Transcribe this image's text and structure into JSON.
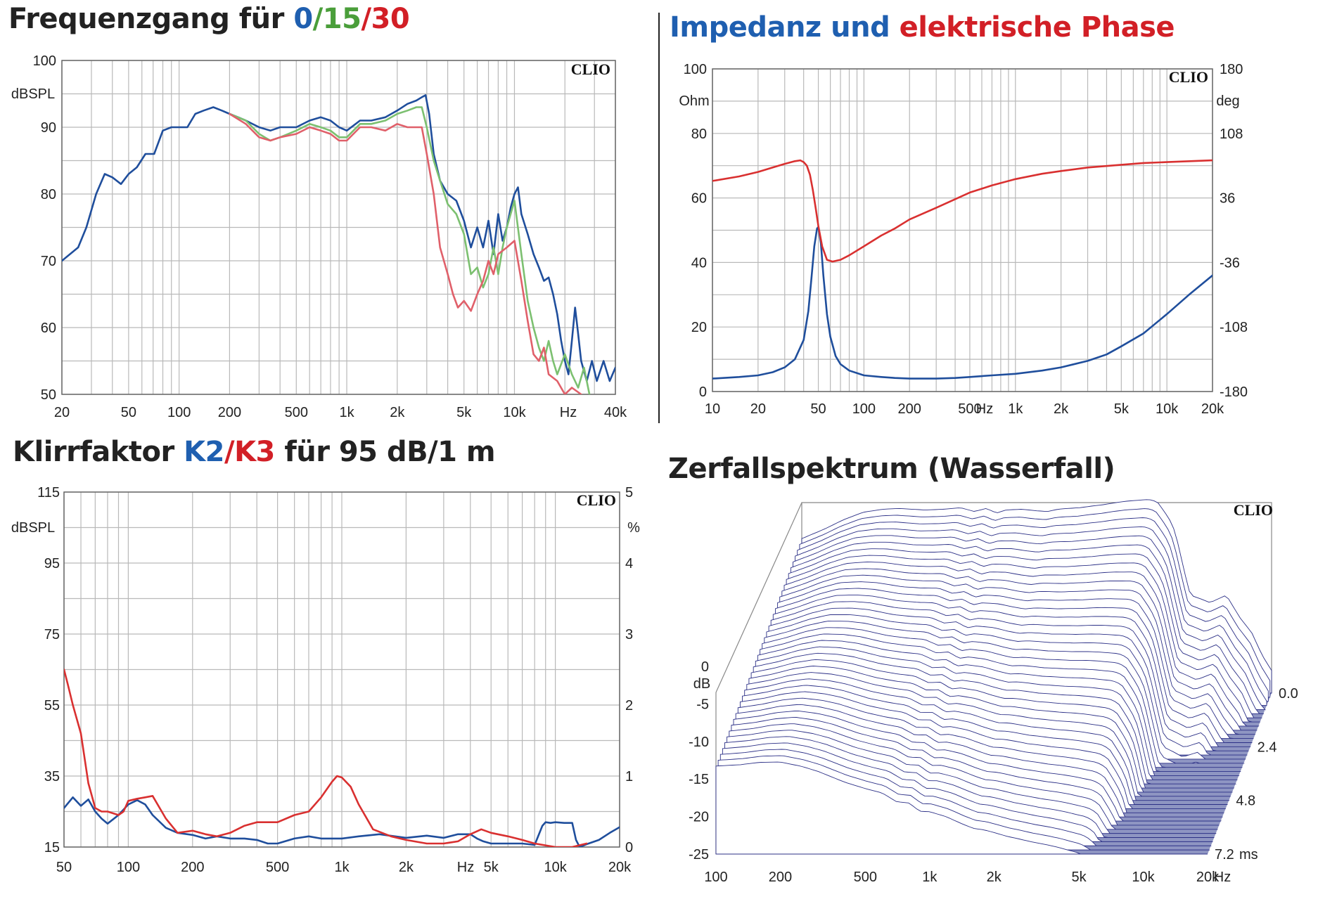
{
  "titles": {
    "freq": {
      "prefix": "Frequenzgang für ",
      "a": "0",
      "s1": "/",
      "b": "15",
      "s2": "/",
      "c": "30"
    },
    "imp": {
      "a": "Impedanz und ",
      "b": "elektrische Phase"
    },
    "thd": {
      "prefix": "Klirrfaktor ",
      "a": "K2",
      "s1": "/",
      "b": "K3",
      "suffix": " für 95 dB/1 m"
    },
    "csd": {
      "text": "Zerfallspektrum (Wasserfall)"
    }
  },
  "watermark": "CLIO",
  "colors": {
    "blue": "#1f4e9c",
    "green": "#7cc070",
    "red": "#e0606a",
    "red_strong": "#d93030",
    "blue_title": "#1f5fb0",
    "green_title": "#4a9e3a",
    "red_title": "#d21f26",
    "floor": "#8e95c2"
  },
  "chart_data": [
    {
      "id": "frequency-response",
      "type": "line",
      "title": "Frequenzgang für 0/15/30",
      "xscale": "log",
      "xlim": [
        20,
        40000
      ],
      "ylim": [
        50,
        100
      ],
      "ylabel": "dBSPL",
      "xunit": "Hz",
      "x_ticks": [
        20,
        50,
        100,
        200,
        500,
        1000,
        2000,
        5000,
        10000,
        40000
      ],
      "x_tick_labels": [
        "20",
        "50",
        "100",
        "200",
        "500",
        "1k",
        "2k",
        "5k",
        "10k",
        "40k"
      ],
      "y_ticks": [
        50,
        60,
        70,
        80,
        90,
        100
      ],
      "y_tick_labels": [
        "50",
        "60",
        "70",
        "80",
        "90",
        "100"
      ],
      "series": [
        {
          "name": "0",
          "color": "#1f4e9c",
          "x": [
            20,
            25,
            28,
            32,
            36,
            40,
            45,
            50,
            56,
            63,
            71,
            80,
            90,
            100,
            112,
            125,
            140,
            160,
            180,
            200,
            225,
            250,
            300,
            350,
            400,
            500,
            600,
            700,
            800,
            900,
            1000,
            1200,
            1400,
            1700,
            2000,
            2300,
            2600,
            2800,
            2950,
            3100,
            3300,
            3600,
            4000,
            4500,
            5000,
            5500,
            6000,
            6500,
            7000,
            7500,
            8000,
            8500,
            9000,
            9500,
            10000,
            10500,
            11000,
            12000,
            13000,
            14000,
            15000,
            16000,
            17000,
            18000,
            19000,
            20000,
            21000,
            22000,
            23000,
            24000,
            25000,
            27000,
            29000,
            31000,
            34000,
            37000,
            40000
          ],
          "y": [
            70,
            72,
            75,
            80,
            83,
            82.5,
            81.5,
            83,
            84,
            86,
            86,
            89.5,
            90,
            90,
            90,
            92,
            92.5,
            93,
            92.5,
            92,
            91.5,
            91,
            90,
            89.5,
            90,
            90,
            91,
            91.5,
            91,
            90,
            89.5,
            91,
            91,
            91.5,
            92.5,
            93.5,
            94,
            94.5,
            94.8,
            92,
            86,
            82,
            80,
            79,
            76,
            72,
            75,
            72,
            76,
            71,
            77,
            73,
            75,
            78,
            80,
            81,
            77,
            74,
            71,
            69,
            67,
            67.5,
            65,
            62,
            58,
            55,
            53,
            58,
            63,
            59,
            55,
            52,
            55,
            52,
            55,
            52,
            54
          ]
        },
        {
          "name": "15",
          "color": "#7cc070",
          "x": [
            200,
            250,
            300,
            350,
            400,
            500,
            600,
            700,
            800,
            900,
            1000,
            1200,
            1400,
            1700,
            2000,
            2300,
            2600,
            2800,
            3000,
            3300,
            3600,
            4000,
            4500,
            5000,
            5500,
            6000,
            6500,
            7000,
            7500,
            8000,
            8500,
            9000,
            10000,
            11000,
            12000,
            13000,
            14000,
            15000,
            16000,
            17000,
            18000,
            20000,
            22000,
            24000,
            26000,
            28000
          ],
          "y": [
            92,
            91,
            89,
            88,
            88.5,
            89.5,
            90.5,
            90,
            89.5,
            88.5,
            88.5,
            90.5,
            90.5,
            91,
            92,
            92.5,
            93,
            93,
            90,
            85,
            82,
            78.5,
            77,
            74,
            68,
            69,
            66,
            68,
            72,
            68,
            72,
            75,
            79,
            71,
            64,
            60,
            57,
            55,
            58,
            55,
            53,
            56,
            53,
            51,
            54,
            50
          ]
        },
        {
          "name": "30",
          "color": "#e0606a",
          "x": [
            200,
            250,
            300,
            350,
            400,
            500,
            600,
            700,
            800,
            900,
            1000,
            1200,
            1400,
            1700,
            2000,
            2300,
            2600,
            2800,
            3000,
            3300,
            3600,
            4000,
            4300,
            4600,
            5000,
            5500,
            6000,
            6500,
            7000,
            7500,
            8000,
            9000,
            10000,
            11000,
            12000,
            13000,
            14000,
            15000,
            16000,
            18000,
            20000,
            22000,
            25000
          ],
          "y": [
            92,
            90.5,
            88.5,
            88,
            88.5,
            89,
            90,
            89.5,
            89,
            88,
            88,
            90,
            90,
            89.5,
            90.5,
            90,
            90,
            90,
            86,
            80,
            72,
            68,
            65,
            63,
            64,
            62.5,
            65,
            67,
            70,
            68,
            71,
            72,
            73,
            67,
            61,
            56,
            55,
            57,
            53,
            52,
            50,
            51,
            50
          ]
        }
      ]
    },
    {
      "id": "impedance-phase",
      "type": "line",
      "title": "Impedanz und elektrische Phase",
      "xscale": "log",
      "xlim": [
        10,
        20000
      ],
      "ylim": [
        0,
        100
      ],
      "ylabel": "Ohm",
      "y2lim": [
        -180,
        180
      ],
      "y2label": "deg",
      "xunit": "Hz",
      "x_ticks": [
        10,
        20,
        50,
        100,
        200,
        500,
        1000,
        2000,
        5000,
        10000,
        20000
      ],
      "x_tick_labels": [
        "10",
        "20",
        "50",
        "100",
        "200",
        "500",
        "1k",
        "2k",
        "5k",
        "10k",
        "20k"
      ],
      "y_ticks": [
        0,
        20,
        40,
        60,
        80,
        100
      ],
      "y_tick_labels": [
        "0",
        "20",
        "40",
        "60",
        "80",
        "100"
      ],
      "y2_ticks": [
        -180,
        -108,
        -36,
        36,
        108,
        180
      ],
      "y2_tick_labels": [
        "-180",
        "-108",
        "-36",
        "36",
        "108",
        "180"
      ],
      "series": [
        {
          "name": "Impedanz",
          "axis": "left",
          "color": "#1f4e9c",
          "x": [
            10,
            15,
            20,
            25,
            30,
            35,
            40,
            43,
            45,
            47,
            49,
            50,
            52,
            54,
            57,
            60,
            65,
            70,
            80,
            100,
            130,
            160,
            200,
            250,
            300,
            400,
            500,
            700,
            1000,
            1500,
            2000,
            3000,
            4000,
            5000,
            7000,
            10000,
            14000,
            20000
          ],
          "y": [
            4,
            4.5,
            5,
            6,
            7.5,
            10,
            16,
            25,
            35,
            45,
            50.5,
            51,
            46,
            36,
            24,
            17,
            11,
            8.5,
            6.5,
            5,
            4.5,
            4.2,
            4,
            4,
            4,
            4.2,
            4.5,
            5,
            5.5,
            6.5,
            7.5,
            9.5,
            11.5,
            14,
            18,
            24,
            30,
            36
          ]
        },
        {
          "name": "Phase",
          "axis": "right",
          "color": "#d93030",
          "x": [
            10,
            15,
            20,
            25,
            30,
            35,
            38,
            40,
            42,
            44,
            46,
            48,
            50,
            53,
            57,
            62,
            70,
            80,
            100,
            130,
            160,
            200,
            300,
            500,
            700,
            1000,
            1500,
            2000,
            3000,
            5000,
            7000,
            10000,
            20000
          ],
          "y": [
            55,
            60,
            65,
            70,
            74,
            77,
            78,
            76,
            72,
            62,
            45,
            25,
            5,
            -18,
            -33,
            -35,
            -33,
            -28,
            -18,
            -6,
            2,
            12,
            25,
            42,
            50,
            57,
            63,
            66,
            70,
            73,
            75,
            76,
            78
          ]
        }
      ]
    },
    {
      "id": "distortion",
      "type": "line",
      "title": "Klirrfaktor K2/K3 für 95 dB/1 m",
      "xscale": "log",
      "xlim": [
        50,
        20000
      ],
      "ylim": [
        15,
        115
      ],
      "ylabel": "dBSPL",
      "y2lim": [
        0,
        5
      ],
      "y2label": "%",
      "xunit": "Hz",
      "x_ticks": [
        50,
        100,
        200,
        500,
        1000,
        2000,
        5000,
        10000,
        20000
      ],
      "x_tick_labels": [
        "50",
        "100",
        "200",
        "500",
        "1k",
        "2k",
        "5k",
        "10k",
        "20k"
      ],
      "y_ticks": [
        15,
        35,
        55,
        75,
        95,
        115
      ],
      "y_tick_labels": [
        "15",
        "35",
        "55",
        "75",
        "95",
        "115"
      ],
      "y2_ticks": [
        0,
        1,
        2,
        3,
        4,
        5
      ],
      "y2_tick_labels": [
        "0",
        "1",
        "2",
        "3",
        "4",
        "5"
      ],
      "series": [
        {
          "name": "K2",
          "axis": "right",
          "color": "#1f4e9c",
          "x": [
            50,
            55,
            60,
            65,
            70,
            75,
            80,
            90,
            100,
            110,
            120,
            130,
            150,
            170,
            200,
            230,
            260,
            300,
            350,
            400,
            450,
            500,
            600,
            700,
            800,
            900,
            1000,
            1200,
            1500,
            2000,
            2500,
            3000,
            3500,
            4000,
            4300,
            4600,
            5000,
            6000,
            7000,
            8000,
            8700,
            9000,
            9500,
            10000,
            11000,
            12000,
            12500,
            13000,
            14000,
            16000,
            18000,
            20000
          ],
          "y": [
            0.55,
            0.7,
            0.58,
            0.67,
            0.5,
            0.4,
            0.33,
            0.45,
            0.6,
            0.66,
            0.6,
            0.45,
            0.27,
            0.2,
            0.17,
            0.12,
            0.15,
            0.12,
            0.12,
            0.1,
            0.05,
            0.05,
            0.12,
            0.15,
            0.12,
            0.12,
            0.12,
            0.15,
            0.18,
            0.13,
            0.16,
            0.13,
            0.18,
            0.18,
            0.12,
            0.08,
            0.05,
            0.05,
            0.05,
            0.03,
            0.3,
            0.35,
            0.34,
            0.35,
            0.34,
            0.34,
            0.1,
            0.0,
            0.04,
            0.1,
            0.2,
            0.28
          ]
        },
        {
          "name": "K3",
          "axis": "right",
          "color": "#d93030",
          "x": [
            50,
            52,
            55,
            60,
            65,
            70,
            75,
            80,
            90,
            95,
            100,
            110,
            120,
            130,
            150,
            170,
            200,
            230,
            260,
            300,
            350,
            400,
            450,
            500,
            600,
            700,
            800,
            900,
            950,
            1000,
            1100,
            1200,
            1400,
            1700,
            2000,
            2500,
            3000,
            3500,
            4000,
            4500,
            5000,
            6000,
            7000,
            8000,
            10000,
            12000,
            14000
          ],
          "y": [
            2.5,
            2.3,
            2.0,
            1.6,
            0.9,
            0.55,
            0.5,
            0.5,
            0.45,
            0.5,
            0.65,
            0.68,
            0.7,
            0.72,
            0.4,
            0.2,
            0.23,
            0.18,
            0.15,
            0.2,
            0.3,
            0.35,
            0.35,
            0.35,
            0.45,
            0.5,
            0.7,
            0.92,
            1.0,
            0.98,
            0.85,
            0.6,
            0.25,
            0.15,
            0.1,
            0.05,
            0.05,
            0.08,
            0.18,
            0.25,
            0.2,
            0.15,
            0.1,
            0.05,
            0.0,
            0.0,
            0.05
          ]
        }
      ]
    },
    {
      "id": "waterfall",
      "type": "area",
      "title": "Zerfallspektrum (Wasserfall)",
      "xscale": "log",
      "xlim": [
        100,
        20000
      ],
      "ylim": [
        -25,
        0
      ],
      "ylabel": "dB",
      "zlabel": "ms",
      "zlim": [
        0,
        7.2
      ],
      "xunit": "Hz",
      "x_ticks": [
        100,
        200,
        500,
        1000,
        2000,
        5000,
        10000,
        20000
      ],
      "x_tick_labels": [
        "100",
        "200",
        "500",
        "1k",
        "2k",
        "5k",
        "10k",
        "20k"
      ],
      "y_ticks": [
        0,
        -5,
        -10,
        -15,
        -20,
        -25
      ],
      "y_tick_labels": [
        "0",
        "-5",
        "-10",
        "-15",
        "-20",
        "-25"
      ],
      "z_ticks": [
        0,
        2.4,
        4.8,
        7.2
      ],
      "z_tick_labels": [
        "0.0",
        "2.4",
        "4.8",
        "7.2"
      ],
      "slice_count": 40,
      "initial_slice_db": {
        "x": [
          100,
          130,
          160,
          200,
          250,
          300,
          400,
          500,
          600,
          700,
          800,
          900,
          1000,
          1200,
          1400,
          1600,
          1800,
          2000,
          2300,
          2600,
          3000,
          3500,
          4000,
          4500,
          5000,
          5500,
          6000,
          6500,
          6800,
          7000,
          7500,
          8000,
          9000,
          10000,
          12000,
          14000,
          16000,
          18000,
          20000
        ],
        "y": [
          -4.5,
          -3.2,
          -2.0,
          -1.0,
          -0.6,
          -0.5,
          -0.7,
          -0.6,
          -0.4,
          -0.9,
          -0.5,
          -1.1,
          -0.7,
          -0.6,
          -0.8,
          -0.9,
          -0.6,
          -0.5,
          -0.4,
          -0.2,
          0,
          0.3,
          0.5,
          0.6,
          0.7,
          0.4,
          -1,
          -2.5,
          -4,
          -5.5,
          -9,
          -12,
          -12.5,
          -13,
          -12,
          -15,
          -17,
          -20,
          -22
        ]
      },
      "decay_db_per_ms": 3.5
    }
  ]
}
